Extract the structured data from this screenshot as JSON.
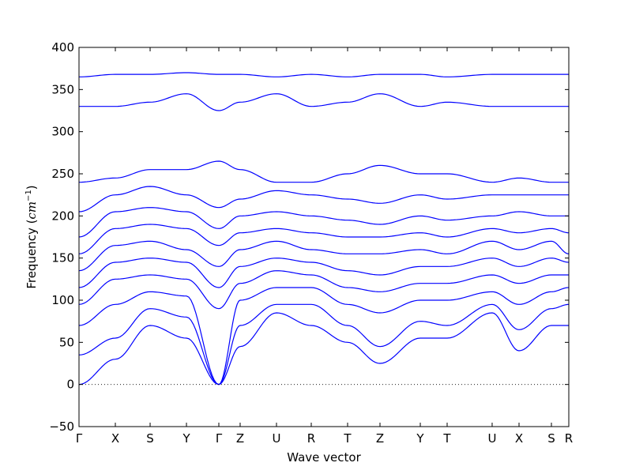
{
  "chart_data": {
    "type": "line",
    "title": "",
    "xlabel": "Wave vector",
    "ylabel_text": "Frequency (",
    "ylabel_unit_base": "cm",
    "ylabel_unit_exp": "−1",
    "ylabel_close": ")",
    "ylim": [
      -50,
      400
    ],
    "yticks": [
      -50,
      0,
      50,
      100,
      150,
      200,
      250,
      300,
      350,
      400
    ],
    "grid": false,
    "zero_line": "dotted",
    "line_color": "#0000ff",
    "high_point_labels": [
      "Γ",
      "X",
      "S",
      "Y",
      "Γ",
      "Z",
      "U",
      "R",
      "T",
      "Z",
      "Y",
      "T",
      "U",
      "X",
      "S",
      "R"
    ],
    "high_point_positions": [
      0,
      0.0742,
      0.1452,
      0.2194,
      0.2855,
      0.329,
      0.4032,
      0.4742,
      0.5484,
      0.6145,
      0.6968,
      0.7516,
      0.8435,
      0.8984,
      0.9645,
      1.0
    ],
    "high_point_frequencies": [
      [
        0,
        35,
        70,
        95,
        115,
        135,
        155,
        175,
        205,
        240,
        330,
        365
      ],
      [
        30,
        55,
        95,
        125,
        145,
        165,
        185,
        205,
        225,
        245,
        330,
        368
      ],
      [
        70,
        90,
        110,
        130,
        150,
        170,
        190,
        210,
        235,
        255,
        335,
        368
      ],
      [
        55,
        80,
        105,
        125,
        145,
        160,
        185,
        205,
        225,
        255,
        345,
        370
      ],
      [
        0,
        0,
        0,
        90,
        115,
        140,
        165,
        185,
        210,
        265,
        325,
        368
      ],
      [
        45,
        70,
        100,
        120,
        140,
        160,
        180,
        200,
        220,
        255,
        335,
        368
      ],
      [
        85,
        95,
        115,
        135,
        150,
        170,
        185,
        205,
        230,
        240,
        345,
        365
      ],
      [
        70,
        95,
        115,
        130,
        145,
        160,
        180,
        200,
        225,
        240,
        330,
        368
      ],
      [
        50,
        70,
        95,
        115,
        135,
        155,
        175,
        195,
        220,
        250,
        335,
        365
      ],
      [
        25,
        45,
        85,
        110,
        130,
        155,
        175,
        190,
        215,
        260,
        345,
        368
      ],
      [
        55,
        75,
        100,
        120,
        140,
        160,
        180,
        200,
        225,
        250,
        330,
        368
      ],
      [
        55,
        70,
        100,
        120,
        140,
        155,
        175,
        195,
        220,
        250,
        335,
        365
      ],
      [
        85,
        95,
        110,
        130,
        150,
        170,
        185,
        200,
        225,
        240,
        330,
        368
      ],
      [
        40,
        65,
        95,
        120,
        140,
        160,
        180,
        205,
        225,
        245,
        330,
        368
      ],
      [
        70,
        90,
        110,
        130,
        150,
        170,
        185,
        200,
        225,
        240,
        330,
        368
      ],
      [
        70,
        95,
        115,
        130,
        145,
        155,
        180,
        200,
        225,
        240,
        330,
        368
      ]
    ]
  }
}
